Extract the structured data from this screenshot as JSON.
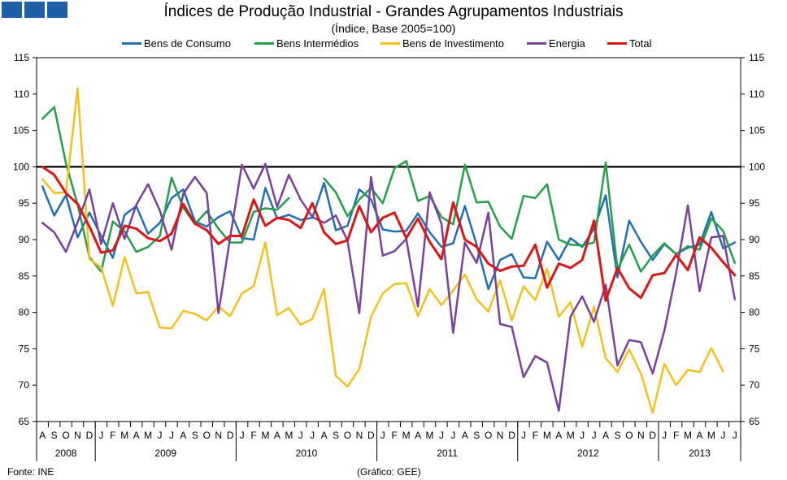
{
  "title": "Índices de Produção Industrial - Grandes Agrupamentos  Industriais",
  "subtitle": "(Índice,  Base 2005=100)",
  "source": "Fonte:  INE",
  "chart_credit": "(Gráfico:  GEE)",
  "logo_color": "#1f5fa8",
  "chart_data": {
    "type": "line",
    "title": "Índices de Produção Industrial - Grandes Agrupamentos  Industriais",
    "subtitle": "(Índice,  Base 2005=100)",
    "xlabel": "",
    "ylabel": "",
    "ylim": [
      65,
      115
    ],
    "yticks": [
      65,
      70,
      75,
      80,
      85,
      90,
      95,
      100,
      105,
      110,
      115
    ],
    "grid": false,
    "legend_position": "top",
    "reference_line": 100,
    "month_labels": [
      "A",
      "S",
      "O",
      "N",
      "D",
      "J",
      "F",
      "M",
      "A",
      "M",
      "J",
      "J",
      "A",
      "S",
      "O",
      "N",
      "D",
      "J",
      "F",
      "M",
      "A",
      "M",
      "J",
      "J",
      "A",
      "S",
      "O",
      "N",
      "D",
      "J",
      "F",
      "M",
      "A",
      "M",
      "J",
      "J",
      "A",
      "S",
      "O",
      "N",
      "D",
      "J",
      "F",
      "M",
      "A",
      "M",
      "J",
      "J",
      "A",
      "S",
      "O",
      "N",
      "D",
      "J",
      "F",
      "M",
      "A",
      "M",
      "J",
      "J"
    ],
    "years": [
      {
        "label": "2008",
        "start": 0,
        "end": 4
      },
      {
        "label": "2009",
        "start": 5,
        "end": 16
      },
      {
        "label": "2010",
        "start": 17,
        "end": 28
      },
      {
        "label": "2011",
        "start": 29,
        "end": 40
      },
      {
        "label": "2012",
        "start": 41,
        "end": 52
      },
      {
        "label": "2013",
        "start": 53,
        "end": 59
      }
    ],
    "series": [
      {
        "name": "Bens de Consumo",
        "color": "#1f6fb4",
        "values": [
          97.3,
          93.3,
          96.1,
          90.3,
          93.7,
          90.5,
          87.5,
          93.4,
          94.6,
          90.8,
          92.3,
          95.7,
          96.9,
          92.5,
          91.8,
          93.1,
          93.9,
          90.2,
          90.0,
          97.1,
          92.9,
          93.4,
          92.7,
          93.0,
          97.8,
          91.3,
          91.9,
          96.9,
          95.5,
          91.4,
          91.1,
          91.2,
          93.6,
          91.0,
          89.0,
          89.5,
          94.6,
          89.3,
          83.2,
          87.2,
          88.0,
          84.8,
          84.7,
          89.7,
          87.2,
          90.2,
          89.0,
          91.5,
          96.1,
          84.8,
          92.6,
          89.7,
          87.2,
          89.4,
          88.0,
          88.9,
          89.3,
          93.8,
          88.8,
          89.6
        ]
      },
      {
        "name": "Bens Intermédios",
        "color": "#22a04a",
        "values": [
          106.6,
          108.2,
          100.5,
          94.8,
          87.6,
          85.6,
          92.5,
          91.1,
          88.3,
          89.0,
          90.5,
          98.5,
          94.4,
          92.1,
          93.9,
          91.5,
          89.6,
          89.6,
          93.8,
          94.3,
          94.1,
          95.7,
          null,
          null,
          98.4,
          96.5,
          93.2,
          95.5,
          97.1,
          95.0,
          99.8,
          100.8,
          95.3,
          96.0,
          93.1,
          92.1,
          100.3,
          95.1,
          95.2,
          91.8,
          90.1,
          96.0,
          95.7,
          97.6,
          90.0,
          89.3,
          89.2,
          89.6,
          100.6,
          85.9,
          89.3,
          85.6,
          87.8,
          89.5,
          88.0,
          89.1,
          88.6,
          92.9,
          91.2,
          86.8
        ]
      },
      {
        "name": "Bens de Investimento",
        "color": "#f2c21b",
        "values": [
          98.3,
          96.4,
          96.5,
          110.8,
          87.3,
          86.2,
          80.9,
          87.6,
          82.6,
          82.8,
          77.9,
          77.8,
          80.2,
          79.8,
          78.9,
          80.8,
          79.5,
          82.6,
          83.6,
          89.6,
          79.6,
          80.6,
          78.3,
          79.1,
          83.2,
          71.3,
          69.8,
          72.2,
          79.4,
          82.6,
          83.9,
          84.0,
          79.5,
          83.2,
          81.0,
          83.0,
          85.2,
          81.8,
          80.1,
          84.4,
          78.9,
          83.6,
          81.7,
          86.0,
          79.4,
          81.4,
          75.3,
          80.8,
          73.7,
          71.8,
          74.9,
          71.6,
          66.2,
          72.9,
          70.0,
          72.1,
          71.8,
          75.1,
          71.9,
          null
        ]
      },
      {
        "name": "Energia",
        "color": "#7b3f9e",
        "values": [
          92.3,
          91.0,
          88.3,
          92.4,
          96.9,
          89.4,
          95.0,
          90.1,
          94.8,
          97.6,
          94.0,
          88.6,
          96.3,
          98.6,
          96.4,
          79.9,
          90.3,
          100.3,
          97.0,
          100.4,
          94.5,
          98.9,
          95.5,
          93.1,
          92.3,
          93.3,
          89.8,
          79.9,
          98.6,
          87.8,
          88.4,
          90.1,
          80.8,
          96.5,
          92.2,
          77.2,
          89.6,
          86.8,
          93.7,
          78.4,
          78.0,
          71.1,
          74.0,
          73.1,
          66.5,
          79.4,
          82.2,
          78.7,
          83.8,
          72.7,
          76.2,
          75.9,
          71.6,
          77.5,
          85.4,
          94.7,
          82.9,
          90.3,
          90.5,
          81.8
        ]
      },
      {
        "name": "Total",
        "color": "#e01414",
        "values": [
          100.0,
          98.9,
          96.4,
          94.9,
          91.8,
          88.2,
          88.5,
          91.9,
          91.5,
          90.2,
          89.8,
          90.8,
          94.9,
          92.2,
          91.3,
          89.4,
          90.5,
          90.5,
          95.5,
          91.9,
          93.0,
          92.7,
          91.6,
          95.0,
          91.0,
          89.4,
          89.9,
          94.6,
          91.0,
          93.0,
          93.7,
          90.2,
          92.9,
          89.7,
          87.3,
          95.1,
          90.0,
          89.0,
          86.7,
          85.7,
          86.3,
          86.4,
          89.3,
          83.4,
          86.7,
          86.1,
          87.2,
          92.6,
          81.6,
          86.1,
          83.3,
          82.0,
          85.1,
          85.4,
          87.9,
          85.8,
          90.3,
          88.9,
          86.9,
          85.1
        ]
      }
    ]
  }
}
